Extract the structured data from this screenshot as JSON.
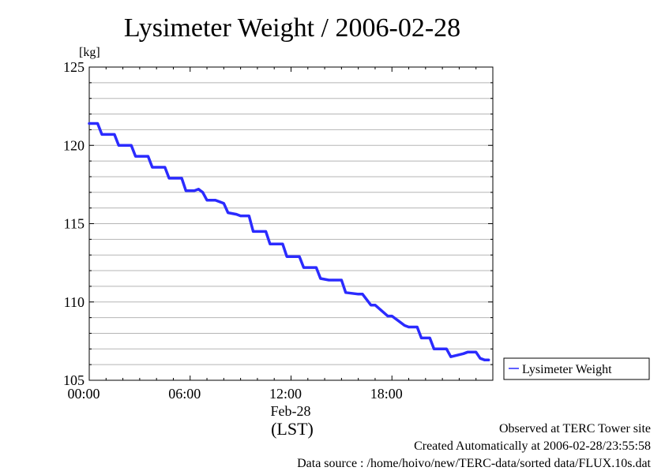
{
  "chart_data": {
    "type": "line",
    "title": "Lysimeter Weight / 2006-02-28",
    "ylabel": "[kg]",
    "xlabel": "(LST)",
    "x_date_label": "Feb-28",
    "ylim": [
      105,
      125
    ],
    "xlim": [
      "00:00",
      "24:00"
    ],
    "y_ticks": [
      "105",
      "110",
      "115",
      "120",
      "125"
    ],
    "x_ticks": [
      "00:00",
      "06:00",
      "12:00",
      "18:00"
    ],
    "grid": true,
    "legend_position": "right",
    "series": [
      {
        "name": "Lysimeter Weight",
        "color": "#2b2bff",
        "x": [
          "00:00",
          "00:30",
          "00:45",
          "01:30",
          "01:45",
          "02:30",
          "02:45",
          "03:30",
          "03:45",
          "04:30",
          "04:45",
          "05:30",
          "05:45",
          "06:15",
          "06:30",
          "06:45",
          "07:00",
          "07:15",
          "07:30",
          "08:00",
          "08:15",
          "08:45",
          "09:00",
          "09:30",
          "09:45",
          "10:30",
          "10:45",
          "11:30",
          "11:45",
          "12:30",
          "12:45",
          "13:30",
          "13:45",
          "14:15",
          "14:30",
          "15:00",
          "15:15",
          "16:00",
          "16:15",
          "16:45",
          "17:00",
          "17:45",
          "18:00",
          "18:45",
          "19:00",
          "19:30",
          "19:45",
          "20:15",
          "20:30",
          "21:15",
          "21:30",
          "22:15",
          "22:30",
          "22:45",
          "23:00",
          "23:15",
          "23:30",
          "23:45"
        ],
        "y": [
          121.4,
          121.4,
          120.7,
          120.7,
          120.0,
          120.0,
          119.3,
          119.3,
          118.6,
          118.6,
          117.9,
          117.9,
          117.1,
          117.1,
          117.2,
          117.0,
          116.5,
          116.5,
          116.5,
          116.3,
          115.7,
          115.6,
          115.5,
          115.5,
          114.5,
          114.5,
          113.7,
          113.7,
          112.9,
          112.9,
          112.2,
          112.2,
          111.5,
          111.4,
          111.4,
          111.4,
          110.6,
          110.5,
          110.5,
          109.8,
          109.8,
          109.1,
          109.1,
          108.5,
          108.4,
          108.4,
          107.7,
          107.7,
          107.0,
          107.0,
          106.5,
          106.7,
          106.8,
          106.8,
          106.8,
          106.4,
          106.3,
          106.3
        ]
      }
    ]
  },
  "footer": {
    "observed": "Observed at TERC Tower site",
    "created": "Created Automatically at 2006-02-28/23:55:58",
    "source": "Data source : /home/hoivo/new/TERC-data/sorted  data/FLUX.10s.dat"
  }
}
